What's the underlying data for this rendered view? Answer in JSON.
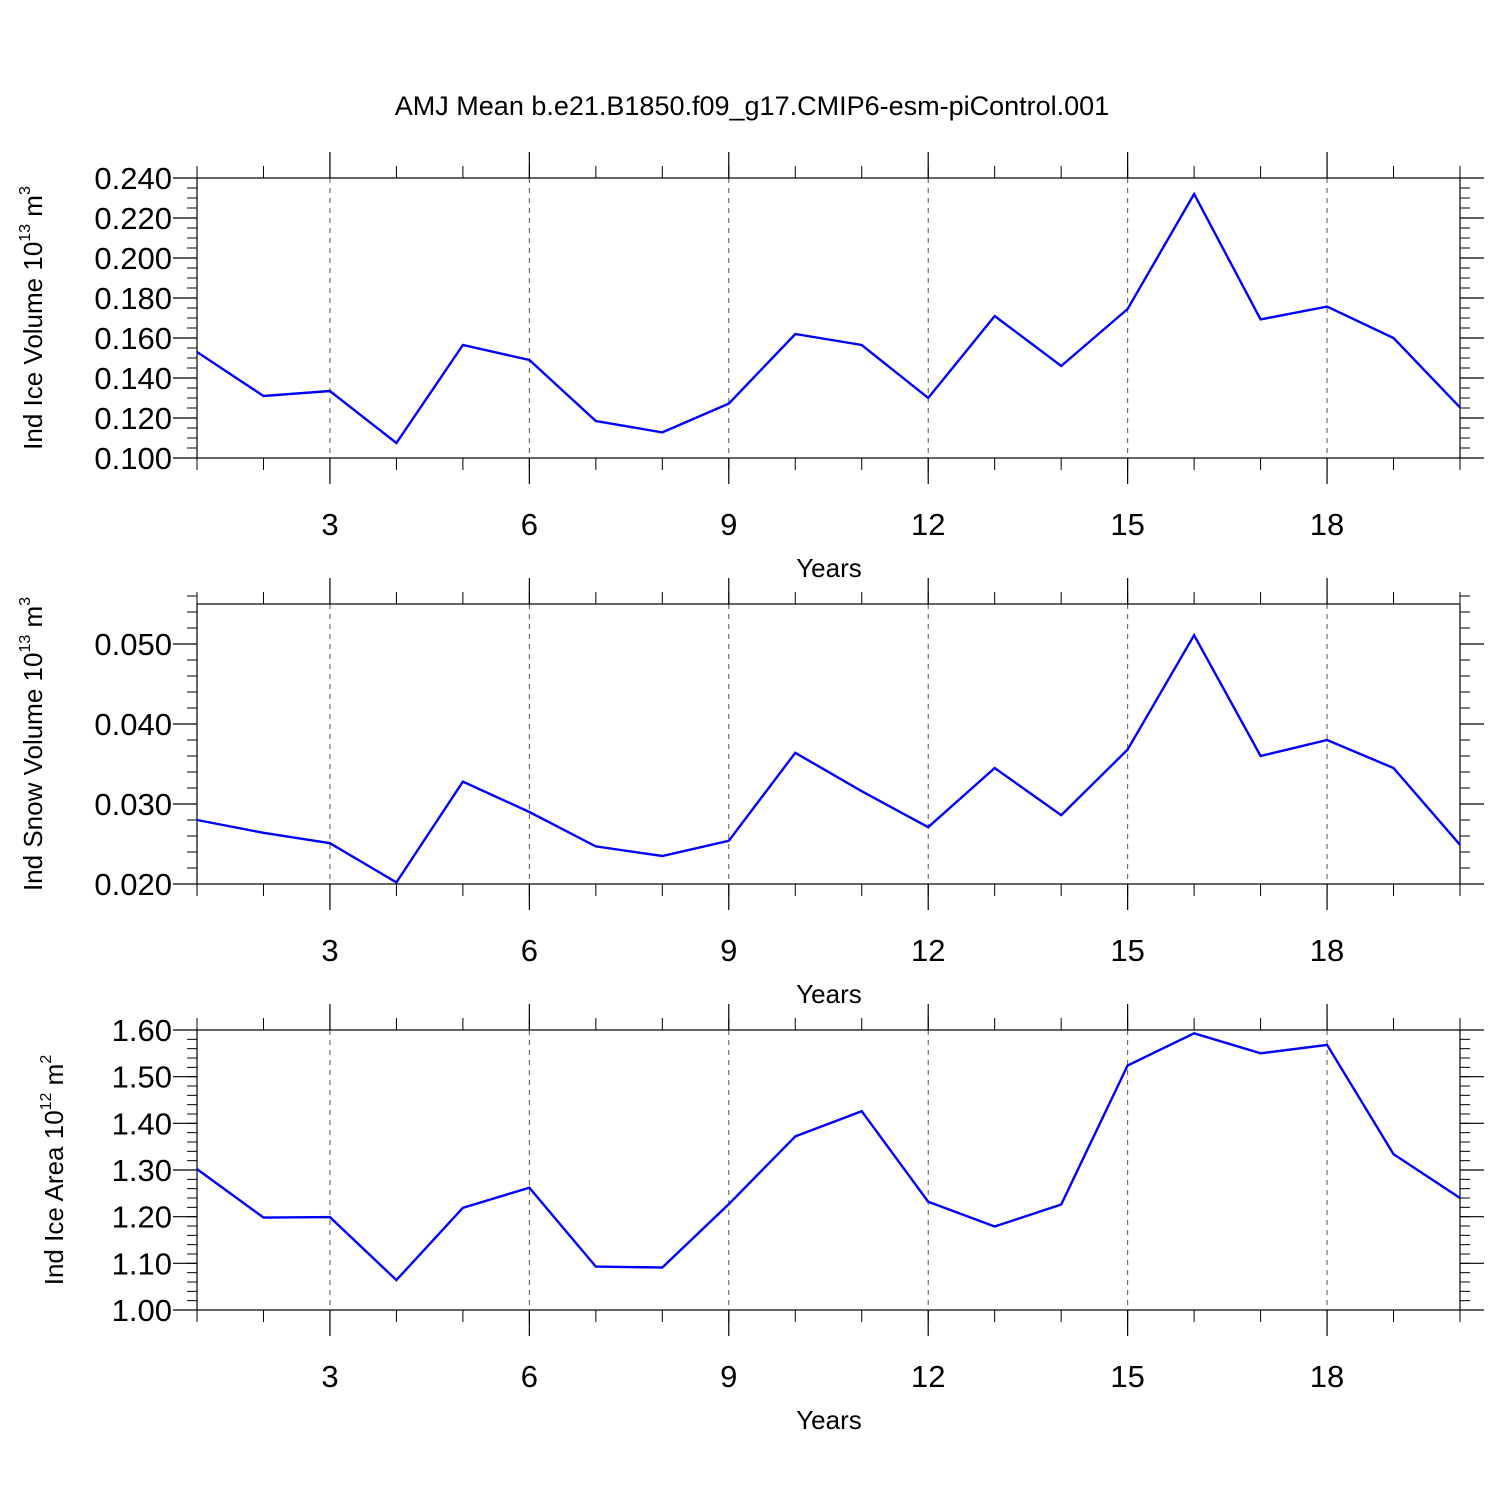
{
  "title": "AMJ Mean b.e21.B1850.f09_g17.CMIP6-esm-piControl.001",
  "colors": {
    "line": "#0000ff",
    "axis": "#000000",
    "grid": "#555555"
  },
  "chart_data": [
    {
      "type": "line",
      "xlabel": "Years",
      "ylabel": {
        "text": "Ind Ice Volume 10",
        "exponent": "13",
        "unit": " m",
        "unit_exponent": "3"
      },
      "x": [
        1,
        2,
        3,
        4,
        5,
        6,
        7,
        8,
        9,
        10,
        11,
        12,
        13,
        14,
        15,
        16,
        17,
        18,
        19,
        20
      ],
      "xlim": [
        1,
        20
      ],
      "xticks": [
        3,
        6,
        9,
        12,
        15,
        18
      ],
      "xtick_labels": [
        "3",
        "6",
        "9",
        "12",
        "15",
        "18"
      ],
      "ylim": [
        0.1,
        0.24
      ],
      "yticks": [
        0.1,
        0.12,
        0.14,
        0.16,
        0.18,
        0.2,
        0.22,
        0.24
      ],
      "ytick_labels": [
        "0.100",
        "0.120",
        "0.140",
        "0.160",
        "0.180",
        "0.200",
        "0.220",
        "0.240"
      ],
      "yminor_step": 0.005,
      "grid": "vertical dashed",
      "series": [
        {
          "values": [
            0.153,
            0.131,
            0.1335,
            0.1075,
            0.1565,
            0.149,
            0.1185,
            0.1128,
            0.1272,
            0.162,
            0.1565,
            0.13,
            0.171,
            0.146,
            0.1745,
            0.232,
            0.1693,
            0.1757,
            0.16,
            0.1253
          ]
        }
      ]
    },
    {
      "type": "line",
      "xlabel": "Years",
      "ylabel": {
        "text": "Ind Snow Volume 10",
        "exponent": "13",
        "unit": " m",
        "unit_exponent": "3"
      },
      "x": [
        1,
        2,
        3,
        4,
        5,
        6,
        7,
        8,
        9,
        10,
        11,
        12,
        13,
        14,
        15,
        16,
        17,
        18,
        19,
        20
      ],
      "xlim": [
        1,
        20
      ],
      "xticks": [
        3,
        6,
        9,
        12,
        15,
        18
      ],
      "xtick_labels": [
        "3",
        "6",
        "9",
        "12",
        "15",
        "18"
      ],
      "ylim": [
        0.02,
        0.055
      ],
      "yticks": [
        0.02,
        0.03,
        0.04,
        0.05
      ],
      "ytick_labels": [
        "0.020",
        "0.030",
        "0.040",
        "0.050"
      ],
      "yminor_step": 0.002,
      "grid": "vertical dashed",
      "series": [
        {
          "values": [
            0.028,
            0.0264,
            0.0251,
            0.0202,
            0.0328,
            0.029,
            0.0247,
            0.0235,
            0.0254,
            0.0364,
            0.0316,
            0.0271,
            0.0345,
            0.0286,
            0.0368,
            0.0511,
            0.036,
            0.038,
            0.0345,
            0.0249
          ]
        }
      ]
    },
    {
      "type": "line",
      "xlabel": "Years",
      "ylabel": {
        "text": "Ind Ice Area 10",
        "exponent": "12",
        "unit": " m",
        "unit_exponent": "2"
      },
      "x": [
        1,
        2,
        3,
        4,
        5,
        6,
        7,
        8,
        9,
        10,
        11,
        12,
        13,
        14,
        15,
        16,
        17,
        18,
        19,
        20
      ],
      "xlim": [
        1,
        20
      ],
      "xticks": [
        3,
        6,
        9,
        12,
        15,
        18
      ],
      "xtick_labels": [
        "3",
        "6",
        "9",
        "12",
        "15",
        "18"
      ],
      "ylim": [
        1.0,
        1.6
      ],
      "yticks": [
        1.0,
        1.1,
        1.2,
        1.3,
        1.4,
        1.5,
        1.6
      ],
      "ytick_labels": [
        "1.00",
        "1.10",
        "1.20",
        "1.30",
        "1.40",
        "1.50",
        "1.60"
      ],
      "yminor_step": 0.02,
      "grid": "vertical dashed",
      "series": [
        {
          "values": [
            1.302,
            1.198,
            1.199,
            1.064,
            1.219,
            1.262,
            1.093,
            1.091,
            1.227,
            1.372,
            1.426,
            1.232,
            1.179,
            1.226,
            1.524,
            1.593,
            1.55,
            1.568,
            1.334,
            1.24
          ]
        }
      ]
    }
  ]
}
